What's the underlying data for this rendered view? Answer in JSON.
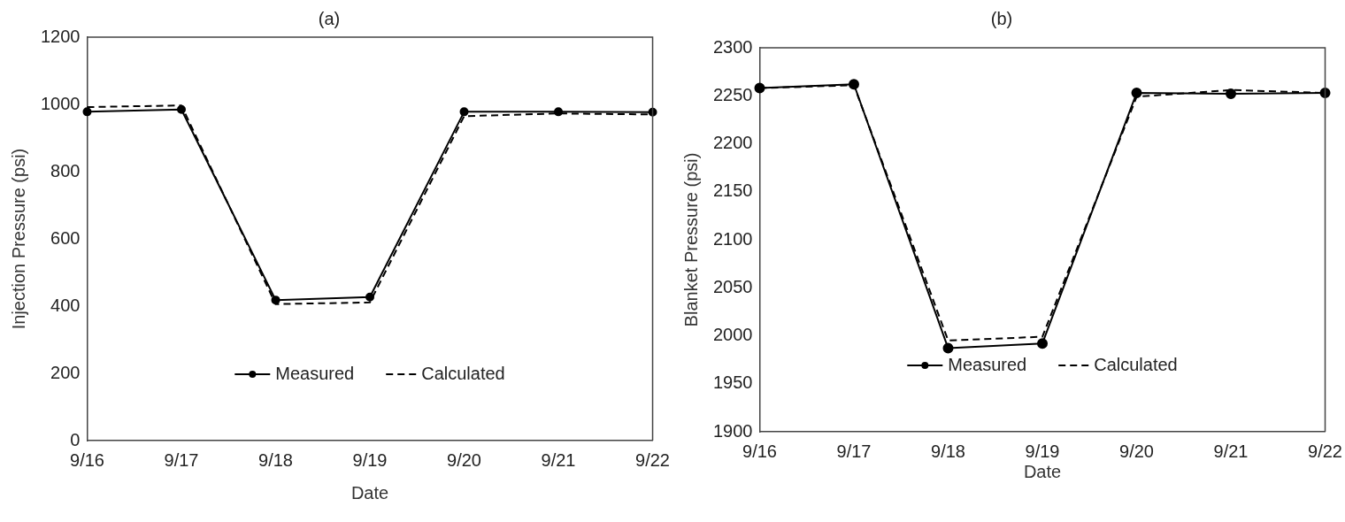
{
  "chart_data": [
    {
      "type": "line",
      "title": "(a)",
      "xlabel": "Date",
      "ylabel": "Injection Pressure (psi)",
      "categories": [
        "9/16",
        "9/17",
        "9/18",
        "9/19",
        "9/20",
        "9/21",
        "9/22"
      ],
      "ylim": [
        0,
        1200
      ],
      "yticks": [
        0,
        200,
        400,
        600,
        800,
        1000,
        1200
      ],
      "grid": false,
      "legend": "bottom",
      "series": [
        {
          "name": "Measured",
          "color": "#000000",
          "marker": "circle",
          "line_style": "solid",
          "values": [
            978,
            985,
            418,
            427,
            978,
            978,
            977
          ]
        },
        {
          "name": "Calculated",
          "color": "#000000",
          "marker": "none",
          "line_style": "dashed",
          "values": [
            992,
            997,
            406,
            411,
            965,
            973,
            970
          ]
        }
      ]
    },
    {
      "type": "line",
      "title": "(b)",
      "xlabel": "Date",
      "ylabel": "Blanket Pressure (psi)",
      "categories": [
        "9/16",
        "9/17",
        "9/18",
        "9/19",
        "9/20",
        "9/21",
        "9/22"
      ],
      "ylim": [
        1900,
        2300
      ],
      "yticks": [
        1900,
        1950,
        2000,
        2050,
        2100,
        2150,
        2200,
        2250,
        2300
      ],
      "grid": false,
      "legend": "bottom",
      "series": [
        {
          "name": "Measured",
          "color": "#000000",
          "marker": "circle",
          "line_style": "solid",
          "values": [
            2258,
            2262,
            1987,
            1992,
            2253,
            2252,
            2253
          ]
        },
        {
          "name": "Calculated",
          "color": "#000000",
          "marker": "none",
          "line_style": "dashed",
          "values": [
            2258,
            2261,
            1995,
            1999,
            2249,
            2256,
            2253
          ]
        }
      ]
    }
  ]
}
